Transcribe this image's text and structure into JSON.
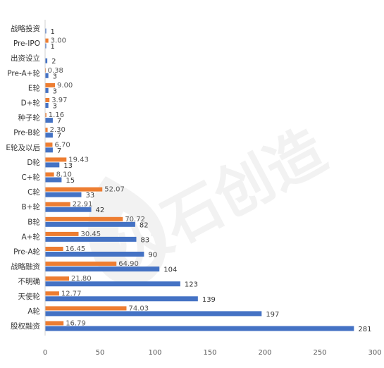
{
  "chart_data": {
    "type": "bar",
    "orientation": "horizontal",
    "categories": [
      "战略投资",
      "Pre-IPO",
      "出资设立",
      "Pre-A+轮",
      "E轮",
      "D+轮",
      "种子轮",
      "Pre-B轮",
      "E轮及以后",
      "D轮",
      "C+轮",
      "C轮",
      "B+轮",
      "B轮",
      "A+轮",
      "Pre-A轮",
      "战略融资",
      "不明确",
      "天使轮",
      "A轮",
      "股权融资"
    ],
    "series": [
      {
        "color": "#4472C4",
        "values": [
          1,
          1,
          2,
          3,
          3,
          3,
          7,
          7,
          7,
          13,
          15,
          33,
          42,
          82,
          83,
          90,
          104,
          123,
          139,
          197,
          281
        ]
      },
      {
        "color": "#ED7D31",
        "values": [
          null,
          3.0,
          null,
          0.38,
          9.0,
          3.97,
          1.16,
          2.3,
          6.7,
          19.43,
          8.1,
          52.07,
          22.91,
          70.72,
          30.45,
          16.45,
          64.9,
          21.8,
          12.77,
          74.03,
          16.79
        ]
      }
    ],
    "orange_labels": [
      null,
      "3.00",
      null,
      "0.38",
      "9.00",
      "3.97",
      "1.16",
      "2.30",
      "6.70",
      "19.43",
      "8.10",
      "52.07",
      "22.91",
      "70.72",
      "30.45",
      "16.45",
      "64.90",
      "21.80",
      "12.77",
      "74.03",
      "16.79"
    ],
    "xlim": [
      0,
      300
    ],
    "xticks": [
      "0",
      "50",
      "100",
      "150",
      "200",
      "250",
      "300"
    ],
    "grid": false,
    "legend": "none"
  },
  "watermark": {
    "text": "火石创造"
  }
}
